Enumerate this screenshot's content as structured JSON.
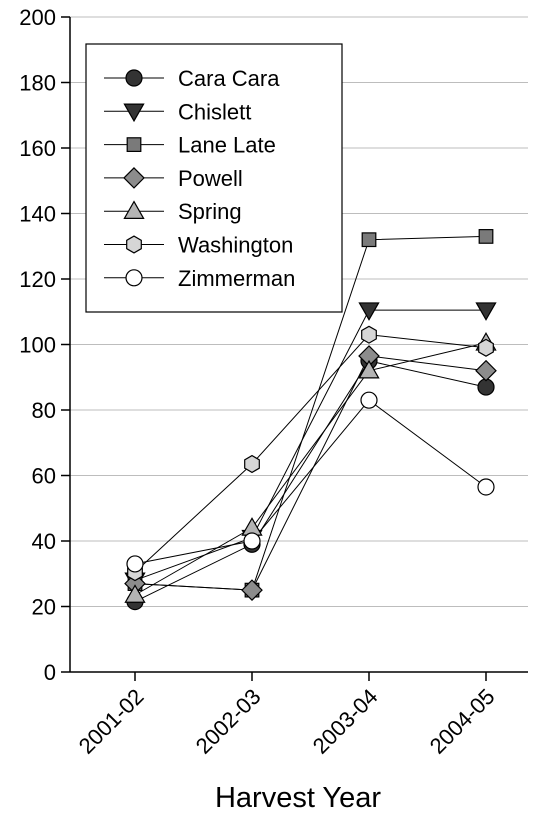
{
  "chart_data": {
    "type": "line",
    "title": "",
    "xlabel": "Harvest Year",
    "ylabel": "",
    "categories": [
      "2001-02",
      "2002-03",
      "2003-04",
      "2004-05"
    ],
    "ylim": [
      0,
      200
    ],
    "yticks": [
      0,
      20,
      40,
      60,
      80,
      100,
      120,
      140,
      160,
      180,
      200
    ],
    "grid": "horizontal",
    "legend_position": "top-left",
    "series": [
      {
        "name": "Cara Cara",
        "marker": "circle",
        "fill": "#333333",
        "values": [
          21.5,
          39,
          95,
          87
        ]
      },
      {
        "name": "Chislett",
        "marker": "triangle-down",
        "fill": "#333333",
        "values": [
          28,
          41,
          110.5,
          110.5
        ]
      },
      {
        "name": "Lane Late",
        "marker": "square",
        "fill": "#7a7a7a",
        "values": [
          27,
          25,
          132,
          133
        ]
      },
      {
        "name": "Powell",
        "marker": "diamond",
        "fill": "#8c8c8c",
        "values": [
          27,
          25,
          96.5,
          92
        ]
      },
      {
        "name": "Spring",
        "marker": "triangle-up",
        "fill": "#b4b4b4",
        "values": [
          23.5,
          44,
          92,
          100.5
        ]
      },
      {
        "name": "Washington",
        "marker": "hexagon",
        "fill": "#d6d6d6",
        "values": [
          30.5,
          63.5,
          103,
          99
        ]
      },
      {
        "name": "Zimmerman",
        "marker": "circle",
        "fill": "#ffffff",
        "values": [
          33,
          40,
          83,
          56.5
        ]
      }
    ]
  }
}
